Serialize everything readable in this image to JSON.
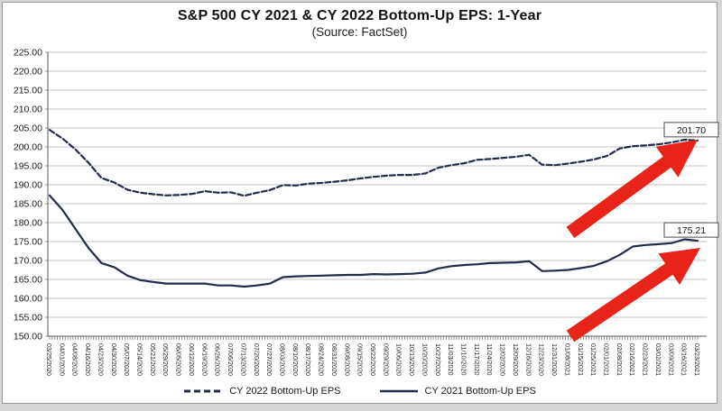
{
  "figure": {
    "title": "S&P 500 CY 2021 & CY 2022 Bottom-Up EPS: 1-Year",
    "subtitle": "(Source: FactSet)"
  },
  "colors": {
    "line_navy": "#1f2c4a",
    "arrow_red": "#e8231a",
    "grid_gray": "#c3c3c3"
  },
  "chart_data": {
    "type": "line",
    "title": "S&P 500 CY 2021 & CY 2022 Bottom-Up EPS: 1-Year",
    "subtitle": "(Source: FactSet)",
    "ylim": [
      150,
      225
    ],
    "ytick_step": 5,
    "ytick_labels": [
      "225.00",
      "220.00",
      "215.00",
      "210.00",
      "205.00",
      "200.00",
      "195.00",
      "190.00",
      "185.00",
      "180.00",
      "175.00",
      "170.00",
      "165.00",
      "160.00",
      "155.00",
      "150.00"
    ],
    "grid": "horizontal",
    "legend_position": "bottom",
    "x_labels": [
      "03/25/2020",
      "04/01/2020",
      "04/08/2020",
      "04/16/2020",
      "04/23/2020",
      "04/30/2020",
      "05/07/2020",
      "05/14/2020",
      "05/21/2020",
      "05/29/2020",
      "06/05/2020",
      "06/12/2020",
      "06/19/2020",
      "06/26/2020",
      "07/06/2020",
      "07/13/2020",
      "07/20/2020",
      "07/27/2020",
      "08/03/2020",
      "08/10/2020",
      "08/17/2020",
      "08/24/2020",
      "08/31/2020",
      "09/08/2020",
      "09/15/2020",
      "09/22/2020",
      "09/29/2020",
      "10/06/2020",
      "10/13/2020",
      "10/20/2020",
      "10/27/2020",
      "11/03/2020",
      "11/10/2020",
      "11/17/2020",
      "11/24/2020",
      "12/02/2020",
      "12/09/2020",
      "12/16/2020",
      "12/23/2020",
      "12/31/2020",
      "01/08/2021",
      "01/15/2021",
      "01/25/2021",
      "02/01/2021",
      "02/08/2021",
      "02/16/2021",
      "02/23/2021",
      "03/02/2021",
      "03/09/2021",
      "03/16/2021",
      "03/23/2021"
    ],
    "series": [
      {
        "name": "CY 2022 Bottom-Up EPS",
        "style": "dashed",
        "color": "#1f2c4a",
        "end_label": "201.70",
        "values": [
          204.5,
          202.2,
          199.3,
          195.8,
          191.8,
          190.6,
          188.7,
          187.9,
          187.5,
          187.2,
          187.3,
          187.6,
          188.3,
          187.9,
          188.0,
          187.1,
          187.9,
          188.6,
          189.9,
          189.8,
          190.3,
          190.5,
          190.8,
          191.2,
          191.7,
          192.1,
          192.4,
          192.6,
          192.6,
          193.0,
          194.5,
          195.2,
          195.7,
          196.6,
          196.8,
          197.1,
          197.4,
          197.9,
          195.3,
          195.2,
          195.6,
          196.1,
          196.7,
          197.6,
          199.6,
          200.2,
          200.4,
          200.7,
          201.2,
          201.9,
          201.7
        ]
      },
      {
        "name": "CY 2021 Bottom-Up EPS",
        "style": "solid",
        "color": "#1f2c4a",
        "end_label": "175.21",
        "values": [
          187.2,
          183.3,
          178.3,
          173.3,
          169.3,
          168.2,
          166.0,
          164.8,
          164.3,
          163.9,
          163.9,
          163.9,
          163.9,
          163.4,
          163.4,
          163.1,
          163.4,
          163.9,
          165.6,
          165.8,
          165.9,
          166.0,
          166.1,
          166.2,
          166.2,
          166.4,
          166.3,
          166.4,
          166.5,
          166.8,
          167.9,
          168.5,
          168.8,
          169.0,
          169.3,
          169.4,
          169.5,
          169.8,
          167.2,
          167.3,
          167.5,
          168.0,
          168.6,
          169.8,
          171.5,
          173.7,
          174.1,
          174.3,
          174.6,
          175.6,
          175.21
        ]
      }
    ],
    "annotations": [
      {
        "type": "arrow",
        "direction": "up-right",
        "color": "#e8231a",
        "points_to": "201.70"
      },
      {
        "type": "arrow",
        "direction": "up-right",
        "color": "#e8231a",
        "points_to": "175.21"
      }
    ]
  }
}
